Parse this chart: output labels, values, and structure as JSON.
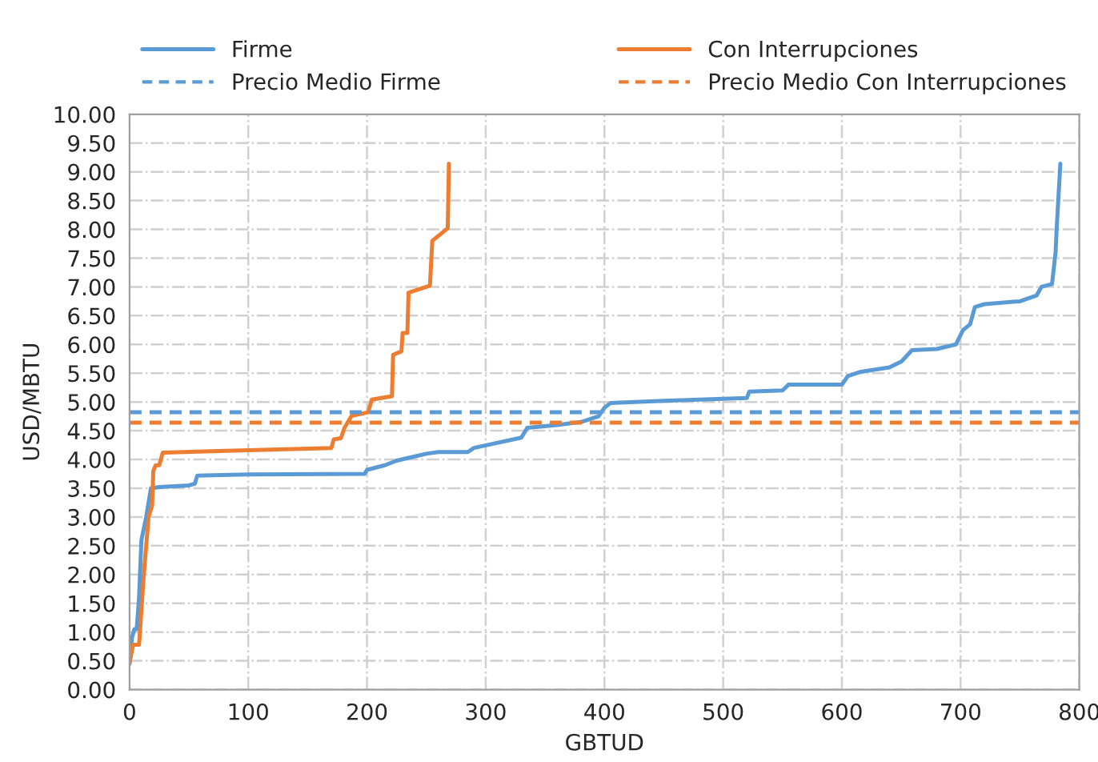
{
  "chart_data": {
    "type": "line",
    "xlabel": "GBTUD",
    "ylabel": "USD/MBTU",
    "xlim": [
      0,
      800
    ],
    "xticks": [
      0,
      100,
      200,
      300,
      400,
      500,
      600,
      700,
      800
    ],
    "ylim": [
      0,
      10
    ],
    "yticks": [
      {
        "value": 0,
        "label": "0.00"
      },
      {
        "value": 0.5,
        "label": "0.50"
      },
      {
        "value": 1,
        "label": "1.00"
      },
      {
        "value": 1.5,
        "label": "1.50"
      },
      {
        "value": 2,
        "label": "2.00"
      },
      {
        "value": 2.5,
        "label": "2.50"
      },
      {
        "value": 3,
        "label": "3.00"
      },
      {
        "value": 3.5,
        "label": "3.50"
      },
      {
        "value": 4,
        "label": "4.00"
      },
      {
        "value": 4.5,
        "label": "4.50"
      },
      {
        "value": 5,
        "label": "5.00"
      },
      {
        "value": 5.5,
        "label": "5.50"
      },
      {
        "value": 6,
        "label": "6.00"
      },
      {
        "value": 6.5,
        "label": "6.50"
      },
      {
        "value": 7,
        "label": "7.00"
      },
      {
        "value": 7.5,
        "label": "7.50"
      },
      {
        "value": 8,
        "label": "8.00"
      },
      {
        "value": 8.5,
        "label": "8.50"
      },
      {
        "value": 9,
        "label": "9.00"
      },
      {
        "value": 9.5,
        "label": "9.50"
      },
      {
        "value": 10,
        "label": "10.00"
      }
    ],
    "grid": true,
    "legend": "top",
    "marker": "none",
    "line_style": "solid",
    "series": [
      {
        "name": "Firme",
        "color": "#5b9bd5",
        "x": [
          0,
          2,
          4,
          6,
          8,
          10,
          14,
          18,
          25,
          50,
          55,
          57,
          100,
          198,
          200,
          215,
          225,
          250,
          260,
          285,
          290,
          330,
          335,
          360,
          380,
          395,
          400,
          405,
          450,
          520,
          522,
          550,
          555,
          600,
          605,
          615,
          640,
          650,
          659,
          680,
          696,
          702,
          708,
          712,
          720,
          750,
          764,
          768,
          777,
          780,
          781,
          784
        ],
        "values": [
          0.45,
          0.9,
          1.05,
          1.05,
          1.6,
          2.6,
          3.0,
          3.5,
          3.52,
          3.55,
          3.58,
          3.72,
          3.74,
          3.75,
          3.82,
          3.9,
          3.98,
          4.1,
          4.13,
          4.13,
          4.2,
          4.38,
          4.55,
          4.6,
          4.65,
          4.75,
          4.9,
          4.98,
          5.02,
          5.07,
          5.18,
          5.2,
          5.3,
          5.3,
          5.45,
          5.52,
          5.6,
          5.7,
          5.9,
          5.92,
          6.0,
          6.25,
          6.35,
          6.65,
          6.7,
          6.75,
          6.85,
          7.0,
          7.05,
          7.6,
          8.05,
          9.14
        ]
      },
      {
        "name": "Con Interrupciones",
        "color": "#ed7d31",
        "x": [
          0,
          3,
          8,
          12,
          16,
          19,
          20,
          22,
          25,
          28,
          170,
          172,
          178,
          181,
          187,
          201,
          204,
          221,
          222,
          229,
          230,
          234,
          235,
          253,
          255,
          268,
          269
        ],
        "values": [
          0.47,
          0.78,
          0.78,
          2.0,
          3.0,
          3.2,
          3.8,
          3.9,
          3.9,
          4.12,
          4.2,
          4.35,
          4.37,
          4.55,
          4.76,
          4.82,
          5.04,
          5.1,
          5.82,
          5.88,
          6.2,
          6.2,
          6.9,
          7.02,
          7.8,
          8.02,
          9.14
        ]
      }
    ],
    "ref_lines": [
      {
        "axis": "y",
        "value": 4.82,
        "label": "Precio Medio Firme",
        "color": "#5b9bd5",
        "line_style": "dashed"
      },
      {
        "axis": "y",
        "value": 4.64,
        "label": "Precio Medio Con Interrupciones",
        "color": "#ed7d31",
        "line_style": "dashed"
      }
    ]
  }
}
